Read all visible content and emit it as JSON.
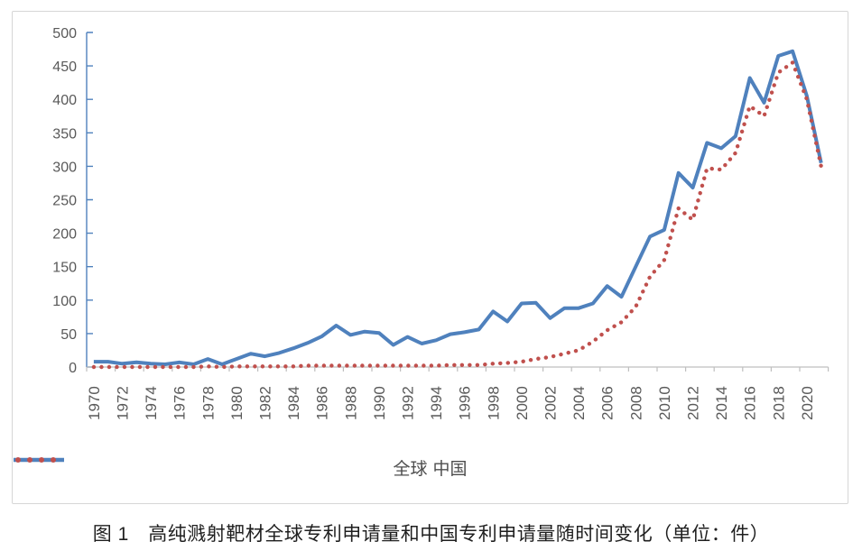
{
  "caption": {
    "text": "图 1　高纯溅射靶材全球专利申请量和中国专利申请量随时间变化（单位：件）"
  },
  "colors": {
    "global_series": "#4f81bd",
    "china_series": "#c0504d",
    "value_axis": "#4f81bd",
    "category_axis": "#bfbfbf",
    "tick_label": "#595959",
    "frame_border": "#d6d6d6"
  },
  "chart_data": {
    "type": "line",
    "title": "高纯溅射靶材全球专利申请量和中国专利申请量随时间变化（单位：件）",
    "xlabel": "",
    "ylabel": "",
    "ylim": [
      0,
      500
    ],
    "y_ticks": [
      0,
      50,
      100,
      150,
      200,
      250,
      300,
      350,
      400,
      450,
      500
    ],
    "grid": false,
    "legend_position": "bottom",
    "x": [
      1970,
      1971,
      1972,
      1973,
      1974,
      1975,
      1976,
      1977,
      1978,
      1979,
      1980,
      1981,
      1982,
      1983,
      1984,
      1985,
      1986,
      1987,
      1988,
      1989,
      1990,
      1991,
      1992,
      1993,
      1994,
      1995,
      1996,
      1997,
      1998,
      1999,
      2000,
      2001,
      2002,
      2003,
      2004,
      2005,
      2006,
      2007,
      2008,
      2009,
      2010,
      2011,
      2012,
      2013,
      2014,
      2015,
      2016,
      2017,
      2018,
      2019,
      2020,
      2021
    ],
    "x_tick_labels": [
      "1970",
      "1972",
      "1974",
      "1976",
      "1978",
      "1980",
      "1982",
      "1984",
      "1986",
      "1988",
      "1990",
      "1992",
      "1994",
      "1996",
      "1998",
      "2000",
      "2002",
      "2004",
      "2006",
      "2008",
      "2010",
      "2012",
      "2014",
      "2016",
      "2018",
      "2020"
    ],
    "series": [
      {
        "name": "全球",
        "style": "solid",
        "color": "#4f81bd",
        "values": [
          8,
          8,
          5,
          7,
          5,
          4,
          7,
          4,
          12,
          4,
          12,
          20,
          16,
          21,
          28,
          36,
          46,
          62,
          48,
          53,
          51,
          33,
          45,
          35,
          40,
          49,
          52,
          56,
          83,
          68,
          95,
          96,
          73,
          88,
          88,
          95,
          121,
          105,
          150,
          195,
          205,
          290,
          268,
          335,
          327,
          345,
          432,
          395,
          465,
          472,
          405,
          305
        ]
      },
      {
        "name": "中国",
        "style": "dotted",
        "color": "#c0504d",
        "values": [
          0,
          0,
          0,
          0,
          0,
          0,
          0,
          0,
          1,
          0,
          1,
          1,
          1,
          1,
          1,
          2,
          2,
          2,
          2,
          2,
          2,
          2,
          2,
          2,
          2,
          3,
          3,
          3,
          5,
          6,
          8,
          12,
          15,
          20,
          25,
          38,
          55,
          67,
          90,
          135,
          160,
          237,
          220,
          297,
          295,
          320,
          390,
          375,
          440,
          455,
          400,
          300
        ]
      }
    ]
  }
}
